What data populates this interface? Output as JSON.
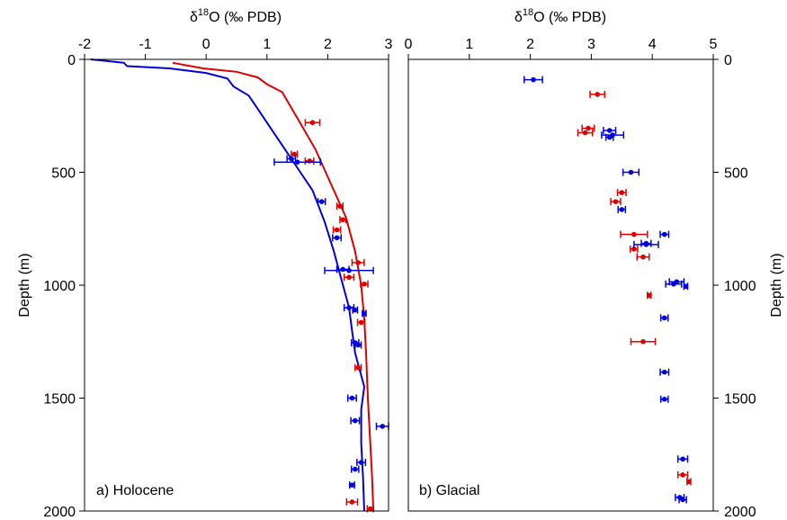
{
  "chart_data": [
    {
      "type": "scatter",
      "panel_label": "a) Holocene",
      "xlabel": "δ18O (‰ PDB)",
      "xlabel_parts": {
        "pre": "δ",
        "sup": "18",
        "post": "O (‰ PDB)"
      },
      "ylabel": "Depth (m)",
      "xlim": [
        -2,
        3
      ],
      "ylim": [
        0,
        2000
      ],
      "xticks": [
        "-2",
        "-1",
        "0",
        "1",
        "2",
        "3"
      ],
      "yticks": [
        "0",
        "500",
        "1000",
        "1500",
        "2000"
      ],
      "y_axis_side": "left",
      "x_axis_side": "top",
      "y_inverted": true,
      "series": [
        {
          "kind": "line",
          "color": "#dd0000",
          "points": [
            [
              -0.55,
              15
            ],
            [
              -0.05,
              40
            ],
            [
              0.5,
              55
            ],
            [
              0.85,
              80
            ],
            [
              1.0,
              110
            ],
            [
              1.25,
              145
            ],
            [
              1.5,
              260
            ],
            [
              1.8,
              400
            ],
            [
              2.05,
              550
            ],
            [
              2.3,
              700
            ],
            [
              2.45,
              850
            ],
            [
              2.55,
              1000
            ],
            [
              2.6,
              1150
            ],
            [
              2.63,
              1300
            ],
            [
              2.66,
              1500
            ],
            [
              2.7,
              1700
            ],
            [
              2.73,
              1850
            ],
            [
              2.75,
              2000
            ]
          ]
        },
        {
          "kind": "line",
          "color": "#0000dd",
          "points": [
            [
              -1.9,
              0
            ],
            [
              -1.35,
              15
            ],
            [
              -1.3,
              30
            ],
            [
              -0.6,
              40
            ],
            [
              0.0,
              60
            ],
            [
              0.35,
              85
            ],
            [
              0.45,
              120
            ],
            [
              0.7,
              160
            ],
            [
              0.8,
              200
            ],
            [
              1.05,
              300
            ],
            [
              1.3,
              400
            ],
            [
              1.5,
              480
            ],
            [
              1.75,
              580
            ],
            [
              1.95,
              720
            ],
            [
              2.1,
              850
            ],
            [
              2.2,
              950
            ],
            [
              2.35,
              1100
            ],
            [
              2.4,
              1200
            ],
            [
              2.45,
              1300
            ],
            [
              2.55,
              1400
            ],
            [
              2.6,
              1450
            ],
            [
              2.55,
              1550
            ],
            [
              2.55,
              1700
            ],
            [
              2.58,
              1850
            ],
            [
              2.6,
              2000
            ]
          ]
        },
        {
          "kind": "points",
          "color": "#dd0000",
          "points": [
            {
              "x": 1.75,
              "y": 280,
              "e": 0.12
            },
            {
              "x": 1.45,
              "y": 420,
              "e": 0.05
            },
            {
              "x": 1.7,
              "y": 450,
              "e": 0.07
            },
            {
              "x": 2.2,
              "y": 650,
              "e": 0.05
            },
            {
              "x": 2.25,
              "y": 710,
              "e": 0.05
            },
            {
              "x": 2.15,
              "y": 755,
              "e": 0.06
            },
            {
              "x": 2.5,
              "y": 900,
              "e": 0.1
            },
            {
              "x": 2.35,
              "y": 965,
              "e": 0.08
            },
            {
              "x": 2.6,
              "y": 995,
              "e": 0.06
            },
            {
              "x": 2.55,
              "y": 1165,
              "e": 0.06
            },
            {
              "x": 2.5,
              "y": 1365,
              "e": 0.05
            },
            {
              "x": 2.4,
              "y": 1960,
              "e": 0.09
            },
            {
              "x": 2.7,
              "y": 1990,
              "e": 0.05
            }
          ]
        },
        {
          "kind": "points",
          "color": "#0000dd",
          "points": [
            {
              "x": 1.4,
              "y": 440,
              "e": 0.07
            },
            {
              "x": 1.5,
              "y": 455,
              "e": 0.38
            },
            {
              "x": 1.9,
              "y": 630,
              "e": 0.06
            },
            {
              "x": 2.15,
              "y": 790,
              "e": 0.07
            },
            {
              "x": 2.25,
              "y": 930,
              "e": 0.1
            },
            {
              "x": 2.35,
              "y": 935,
              "e": 0.4
            },
            {
              "x": 2.35,
              "y": 1100,
              "e": 0.08
            },
            {
              "x": 2.45,
              "y": 1110,
              "e": 0.04
            },
            {
              "x": 2.6,
              "y": 1125,
              "e": 0.03
            },
            {
              "x": 2.45,
              "y": 1255,
              "e": 0.06
            },
            {
              "x": 2.5,
              "y": 1265,
              "e": 0.05
            },
            {
              "x": 2.4,
              "y": 1500,
              "e": 0.07
            },
            {
              "x": 2.45,
              "y": 1600,
              "e": 0.07
            },
            {
              "x": 2.9,
              "y": 1625,
              "e": 0.1
            },
            {
              "x": 2.55,
              "y": 1785,
              "e": 0.07
            },
            {
              "x": 2.45,
              "y": 1815,
              "e": 0.06
            },
            {
              "x": 2.4,
              "y": 1885,
              "e": 0.04
            }
          ]
        }
      ]
    },
    {
      "type": "scatter",
      "panel_label": "b) Glacial",
      "xlabel": "δ18O (‰ PDB)",
      "xlabel_parts": {
        "pre": "δ",
        "sup": "18",
        "post": "O (‰ PDB)"
      },
      "ylabel": "Depth (m)",
      "xlim": [
        0,
        5
      ],
      "ylim": [
        0,
        2000
      ],
      "xticks": [
        "0",
        "1",
        "2",
        "3",
        "4",
        "5"
      ],
      "yticks": [
        "0",
        "500",
        "1000",
        "1500",
        "2000"
      ],
      "y_axis_side": "right",
      "x_axis_side": "top",
      "y_inverted": true,
      "series": [
        {
          "kind": "points",
          "color": "#dd0000",
          "points": [
            {
              "x": 3.1,
              "y": 155,
              "e": 0.12
            },
            {
              "x": 2.95,
              "y": 305,
              "e": 0.1
            },
            {
              "x": 2.9,
              "y": 325,
              "e": 0.12
            },
            {
              "x": 3.5,
              "y": 590,
              "e": 0.07
            },
            {
              "x": 3.4,
              "y": 630,
              "e": 0.08
            },
            {
              "x": 3.7,
              "y": 775,
              "e": 0.22
            },
            {
              "x": 3.7,
              "y": 840,
              "e": 0.06
            },
            {
              "x": 3.85,
              "y": 875,
              "e": 0.1
            },
            {
              "x": 3.95,
              "y": 1045,
              "e": 0.03
            },
            {
              "x": 3.85,
              "y": 1250,
              "e": 0.2
            },
            {
              "x": 4.5,
              "y": 1840,
              "e": 0.08
            },
            {
              "x": 4.6,
              "y": 1870,
              "e": 0.03
            }
          ]
        },
        {
          "kind": "points",
          "color": "#0000dd",
          "points": [
            {
              "x": 2.05,
              "y": 90,
              "e": 0.15
            },
            {
              "x": 3.3,
              "y": 315,
              "e": 0.1
            },
            {
              "x": 3.35,
              "y": 335,
              "e": 0.18
            },
            {
              "x": 3.3,
              "y": 345,
              "e": 0.06
            },
            {
              "x": 3.65,
              "y": 500,
              "e": 0.13
            },
            {
              "x": 3.5,
              "y": 665,
              "e": 0.06
            },
            {
              "x": 4.2,
              "y": 775,
              "e": 0.07
            },
            {
              "x": 3.9,
              "y": 815,
              "e": 0.08
            },
            {
              "x": 3.9,
              "y": 820,
              "e": 0.2
            },
            {
              "x": 4.4,
              "y": 985,
              "e": 0.12
            },
            {
              "x": 4.35,
              "y": 995,
              "e": 0.13
            },
            {
              "x": 4.55,
              "y": 1005,
              "e": 0.03
            },
            {
              "x": 4.2,
              "y": 1145,
              "e": 0.06
            },
            {
              "x": 4.2,
              "y": 1385,
              "e": 0.07
            },
            {
              "x": 4.2,
              "y": 1505,
              "e": 0.06
            },
            {
              "x": 4.5,
              "y": 1770,
              "e": 0.08
            },
            {
              "x": 4.45,
              "y": 1940,
              "e": 0.07
            },
            {
              "x": 4.5,
              "y": 1950,
              "e": 0.06
            }
          ]
        }
      ]
    }
  ]
}
